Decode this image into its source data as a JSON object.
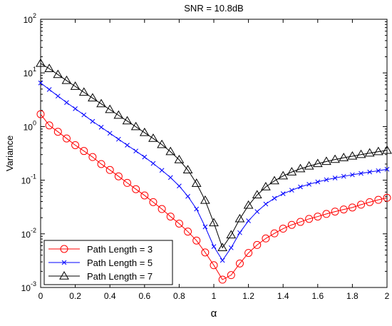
{
  "chart_data": {
    "type": "line",
    "title": "SNR = 10.8dB",
    "xlabel": "α",
    "ylabel": "Variance",
    "xlim": [
      0,
      2
    ],
    "ylim_log10": [
      -3,
      2
    ],
    "yscale": "log",
    "grid": false,
    "legend_position": "bottom-left",
    "x_ticks": [
      "0",
      "0.2",
      "0.4",
      "0.6",
      "0.8",
      "1",
      "1.2",
      "1.4",
      "1.6",
      "1.8",
      "2"
    ],
    "y_ticks": [
      {
        "base": "10",
        "exp": "2"
      },
      {
        "base": "10",
        "exp": "1"
      },
      {
        "base": "10",
        "exp": "0"
      },
      {
        "base": "10",
        "exp": "-1"
      },
      {
        "base": "10",
        "exp": "-2"
      },
      {
        "base": "10",
        "exp": "-3"
      }
    ],
    "x": [
      0,
      0.05,
      0.1,
      0.15,
      0.2,
      0.25,
      0.3,
      0.35,
      0.4,
      0.45,
      0.5,
      0.55,
      0.6,
      0.65,
      0.7,
      0.75,
      0.8,
      0.85,
      0.9,
      0.95,
      1.0,
      1.05,
      1.1,
      1.15,
      1.2,
      1.25,
      1.3,
      1.35,
      1.4,
      1.45,
      1.5,
      1.55,
      1.6,
      1.65,
      1.7,
      1.75,
      1.8,
      1.85,
      1.9,
      1.95,
      2.0
    ],
    "series": [
      {
        "name": "Path Length = 3",
        "color": "#ff0000",
        "marker": "circle",
        "values": [
          1.7,
          1.05,
          0.8,
          0.6,
          0.45,
          0.35,
          0.27,
          0.2,
          0.155,
          0.118,
          0.089,
          0.068,
          0.052,
          0.039,
          0.029,
          0.021,
          0.0155,
          0.011,
          0.0075,
          0.0045,
          0.0026,
          0.0014,
          0.0017,
          0.0028,
          0.0044,
          0.0062,
          0.0082,
          0.0102,
          0.0125,
          0.0147,
          0.0167,
          0.019,
          0.021,
          0.0235,
          0.026,
          0.0285,
          0.031,
          0.035,
          0.039,
          0.043,
          0.047
        ]
      },
      {
        "name": "Path Length = 5",
        "color": "#0000ff",
        "marker": "x",
        "values": [
          6.5,
          4.9,
          3.7,
          2.8,
          2.15,
          1.65,
          1.25,
          0.97,
          0.75,
          0.58,
          0.45,
          0.35,
          0.27,
          0.205,
          0.153,
          0.112,
          0.078,
          0.05,
          0.029,
          0.0135,
          0.0058,
          0.0032,
          0.0055,
          0.0105,
          0.0175,
          0.026,
          0.036,
          0.046,
          0.056,
          0.065,
          0.075,
          0.084,
          0.093,
          0.102,
          0.11,
          0.118,
          0.126,
          0.134,
          0.142,
          0.15,
          0.16
        ]
      },
      {
        "name": "Path Length = 7",
        "color": "#000000",
        "marker": "triangle",
        "values": [
          15,
          12,
          9.3,
          7.2,
          5.6,
          4.35,
          3.4,
          2.65,
          2.07,
          1.62,
          1.27,
          0.99,
          0.77,
          0.6,
          0.46,
          0.34,
          0.24,
          0.155,
          0.087,
          0.042,
          0.016,
          0.0055,
          0.0095,
          0.019,
          0.034,
          0.053,
          0.075,
          0.097,
          0.12,
          0.142,
          0.163,
          0.183,
          0.203,
          0.223,
          0.243,
          0.262,
          0.28,
          0.3,
          0.32,
          0.34,
          0.36
        ]
      }
    ]
  }
}
